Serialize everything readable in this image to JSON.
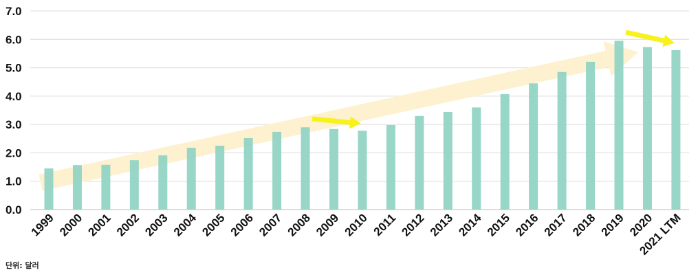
{
  "chart_data": {
    "type": "bar",
    "categories": [
      "1999",
      "2000",
      "2001",
      "2002",
      "2003",
      "2004",
      "2005",
      "2006",
      "2007",
      "2008",
      "2009",
      "2010",
      "2011",
      "2012",
      "2013",
      "2014",
      "2015",
      "2016",
      "2017",
      "2018",
      "2019",
      "2020",
      "2021 LTM"
    ],
    "values": [
      1.45,
      1.57,
      1.58,
      1.74,
      1.91,
      2.18,
      2.25,
      2.52,
      2.74,
      2.9,
      2.84,
      2.78,
      2.98,
      3.3,
      3.44,
      3.6,
      4.07,
      4.45,
      4.85,
      5.21,
      5.95,
      5.73,
      5.62
    ],
    "ylim": [
      0,
      7
    ],
    "yticks": [
      "0.0",
      "1.0",
      "2.0",
      "3.0",
      "4.0",
      "5.0",
      "6.0",
      "7.0"
    ],
    "grid": true,
    "bar_color": "#8fd3c3",
    "annotations": {
      "trend_arrow_color": "#fdf0cc",
      "highlight_arrow_color": "#f7f21b",
      "long_trend": {
        "from": "1999",
        "to": "2019"
      },
      "highlight_arrows": [
        {
          "from": "2008",
          "to": "2010"
        },
        {
          "from": "2019",
          "to": "2021 LTM"
        }
      ]
    }
  },
  "unit_note": "단위: 달러"
}
